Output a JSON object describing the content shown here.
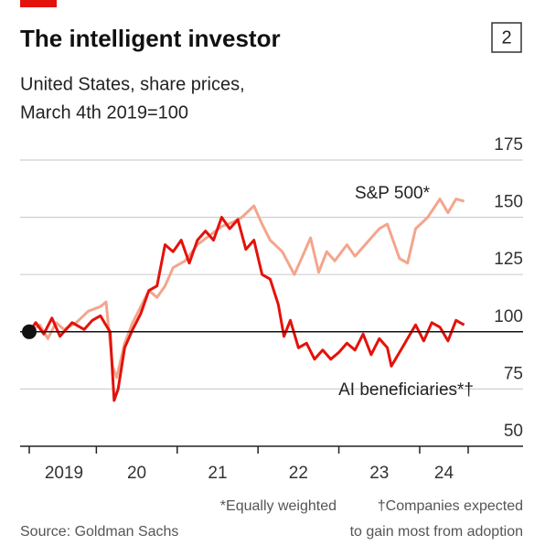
{
  "chart_number": "2",
  "chart_data": {
    "type": "line",
    "title": "The intelligent investor",
    "subtitle_lines": [
      "United States, share prices,",
      "March 4th 2019=100"
    ],
    "series": [
      {
        "name": "S&P 500*",
        "color": "#f4a58c",
        "x": [
          2019.17,
          2019.3,
          2019.4,
          2019.5,
          2019.6,
          2019.75,
          2019.9,
          2020.05,
          2020.12,
          2020.2,
          2020.25,
          2020.35,
          2020.45,
          2020.55,
          2020.65,
          2020.75,
          2020.85,
          2020.95,
          2021.1,
          2021.25,
          2021.4,
          2021.55,
          2021.7,
          2021.8,
          2021.95,
          2022.05,
          2022.15,
          2022.3,
          2022.45,
          2022.55,
          2022.65,
          2022.75,
          2022.85,
          2022.95,
          2023.1,
          2023.2,
          2023.35,
          2023.5,
          2023.6,
          2023.75,
          2023.85,
          2023.95,
          2024.1,
          2024.25,
          2024.35,
          2024.45,
          2024.55
        ],
        "values": [
          100,
          103,
          97,
          104,
          101,
          104,
          109,
          111,
          113,
          85,
          80,
          95,
          104,
          111,
          118,
          115,
          120,
          128,
          131,
          138,
          142,
          146,
          148,
          150,
          155,
          147,
          140,
          135,
          125,
          133,
          141,
          126,
          135,
          131,
          138,
          133,
          139,
          145,
          147,
          132,
          130,
          145,
          150,
          158,
          152,
          158,
          157
        ]
      },
      {
        "name": "AI beneficiaries*†",
        "color": "#e3120b",
        "x": [
          2019.17,
          2019.25,
          2019.35,
          2019.45,
          2019.55,
          2019.7,
          2019.85,
          2019.95,
          2020.05,
          2020.1,
          2020.17,
          2020.22,
          2020.27,
          2020.35,
          2020.45,
          2020.55,
          2020.65,
          2020.75,
          2020.85,
          2020.95,
          2021.05,
          2021.15,
          2021.25,
          2021.35,
          2021.45,
          2021.55,
          2021.65,
          2021.75,
          2021.85,
          2021.95,
          2022.05,
          2022.15,
          2022.25,
          2022.32,
          2022.4,
          2022.5,
          2022.6,
          2022.7,
          2022.8,
          2022.9,
          2023.0,
          2023.1,
          2023.2,
          2023.3,
          2023.4,
          2023.5,
          2023.6,
          2023.65,
          2023.75,
          2023.85,
          2023.95,
          2024.05,
          2024.15,
          2024.25,
          2024.35,
          2024.45,
          2024.55
        ],
        "values": [
          100,
          104,
          99,
          106,
          98,
          104,
          101,
          105,
          107,
          104,
          100,
          70,
          75,
          93,
          101,
          108,
          118,
          120,
          138,
          135,
          140,
          130,
          140,
          144,
          140,
          150,
          145,
          149,
          136,
          140,
          125,
          123,
          112,
          98,
          105,
          93,
          95,
          88,
          92,
          88,
          91,
          95,
          92,
          99,
          90,
          97,
          93,
          85,
          91,
          97,
          103,
          96,
          104,
          102,
          96,
          105,
          103
        ]
      }
    ],
    "xlim": [
      2019.17,
      2024.6
    ],
    "xticks": [
      {
        "value": 2019.6,
        "label": "2019"
      },
      {
        "value": 2020.5,
        "label": "20"
      },
      {
        "value": 2021.5,
        "label": "21"
      },
      {
        "value": 2022.5,
        "label": "22"
      },
      {
        "value": 2023.5,
        "label": "23"
      },
      {
        "value": 2024.3,
        "label": "24"
      }
    ],
    "xtick_marks": [
      2019.17,
      2020,
      2021,
      2022,
      2023,
      2024,
      2024.6
    ],
    "ylim": [
      50,
      175
    ],
    "yticks": [
      50,
      75,
      100,
      125,
      150,
      175
    ],
    "baseline": 100,
    "grid": true,
    "footnotes": [
      "*Equally weighted",
      "†Companies expected",
      "to gain most from adoption"
    ],
    "source": "Source: Goldman Sachs"
  }
}
